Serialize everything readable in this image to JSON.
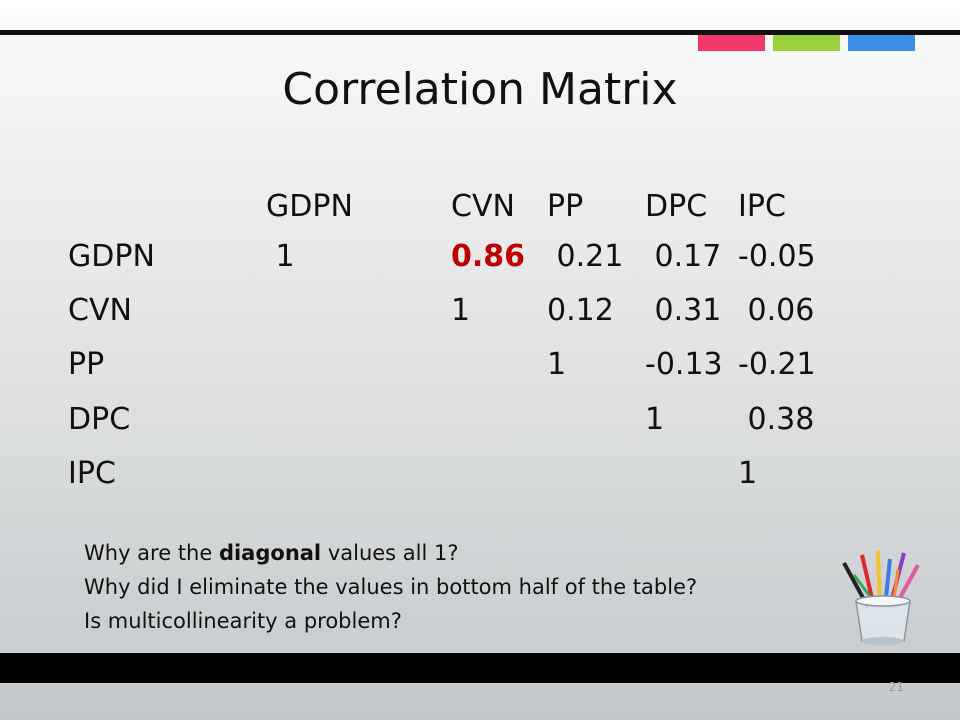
{
  "slide": {
    "title": "Correlation Matrix",
    "page_number": "21",
    "accent_colors": [
      "#f0386b",
      "#9bd13a",
      "#3d8ee6"
    ]
  },
  "matrix": {
    "column_headers": [
      "GDPN",
      "CVN",
      "PP",
      "DPC",
      "IPC"
    ],
    "rows": [
      {
        "label": "GDPN",
        "cells": [
          " 1",
          "0.86",
          " 0.21",
          " 0.17",
          "-0.05"
        ]
      },
      {
        "label": "CVN",
        "cells": [
          "",
          "1",
          "0.12",
          " 0.31",
          " 0.06"
        ]
      },
      {
        "label": "PP",
        "cells": [
          "",
          "",
          "1",
          "-0.13",
          "-0.21"
        ]
      },
      {
        "label": "DPC",
        "cells": [
          "",
          "",
          "",
          "1",
          " 0.38"
        ]
      },
      {
        "label": "IPC",
        "cells": [
          "",
          "",
          "",
          "",
          "1"
        ]
      }
    ],
    "highlight_cell": {
      "row": 0,
      "col": 1
    },
    "highlight_color": "#c00000"
  },
  "notes": {
    "line1_before": "Why  are the ",
    "line1_bold": "diagonal",
    "line1_after": " values all 1?",
    "line2": "Why did I eliminate the values in bottom half of the table?",
    "line3": "Is multicollinearity a problem?"
  },
  "decorations": {
    "clipart": "pencil-cup-icon"
  }
}
